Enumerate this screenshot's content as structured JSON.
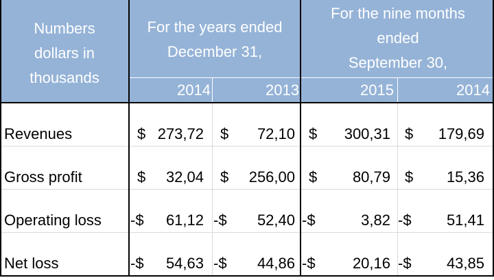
{
  "header": {
    "stub": [
      "Numbers",
      "dollars in",
      "thousands"
    ],
    "group_years": [
      "For the years ended",
      "December 31,"
    ],
    "group_nine": [
      "For the nine months",
      "ended",
      "September 30,"
    ],
    "years": [
      "2014",
      "2013",
      "2015",
      "2014"
    ]
  },
  "rows": [
    {
      "label": "Revenues",
      "cells": [
        {
          "s": "$",
          "v": "273,72"
        },
        {
          "s": "$",
          "v": "72,10"
        },
        {
          "s": "$",
          "v": "300,31"
        },
        {
          "s": "$",
          "v": "179,69"
        }
      ]
    },
    {
      "label": "Gross profit",
      "cells": [
        {
          "s": "$",
          "v": "32,04"
        },
        {
          "s": "$",
          "v": "256,00"
        },
        {
          "s": "$",
          "v": "80,79"
        },
        {
          "s": "$",
          "v": "15,36"
        }
      ]
    },
    {
      "label": "Operating loss",
      "cells": [
        {
          "s": "-$",
          "v": "61,12"
        },
        {
          "s": "-$",
          "v": "52,40"
        },
        {
          "s": "-$",
          "v": "3,82"
        },
        {
          "s": "-$",
          "v": "51,41"
        }
      ]
    },
    {
      "label": "Net loss",
      "cells": [
        {
          "s": "-$",
          "v": "54,63"
        },
        {
          "s": "-$",
          "v": "44,86"
        },
        {
          "s": "-$",
          "v": "20,16"
        },
        {
          "s": "-$",
          "v": "43,85"
        }
      ]
    }
  ]
}
